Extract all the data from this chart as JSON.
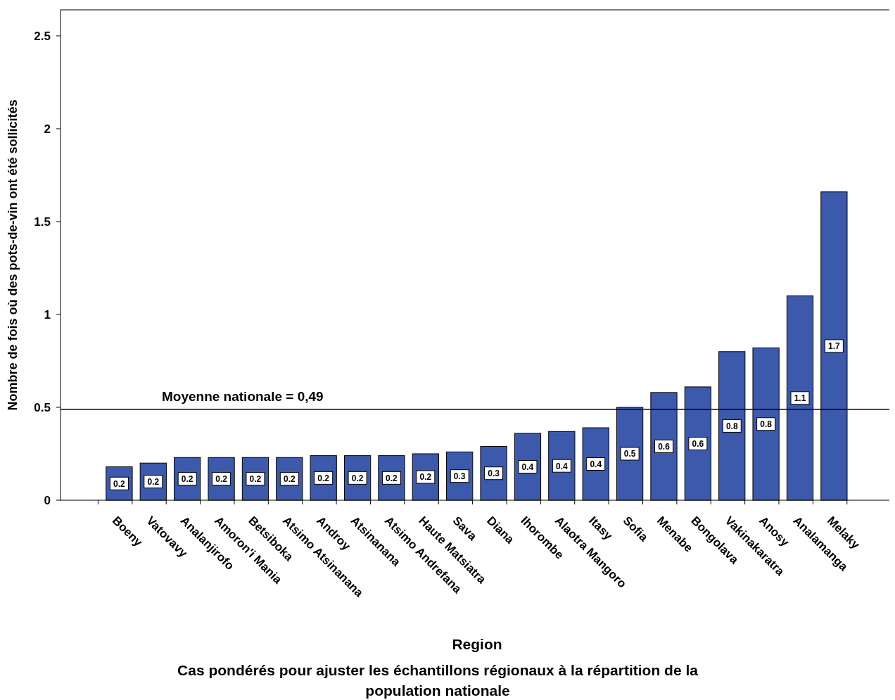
{
  "chart_data": {
    "type": "bar",
    "xlabel": "Region",
    "ylabel": "Nombre de fois où des pots-de-vin ont été sollicités",
    "annotations": [
      "Cas pondérés pour ajuster les échantillons régionaux à la répartition de la population nationale"
    ],
    "categories": [
      "Boeny",
      "Vatovavy",
      "Analanjirofo",
      "Amoron'i Mania",
      "Betsiboka",
      "Atsimo Atsinanana",
      "Androy",
      "Atsinanana",
      "Atsimo Andrefana",
      "Haute Matsiatra",
      "Sava",
      "Diana",
      "Ihorombe",
      "Alaotra Mangoro",
      "Itasy",
      "Sofia",
      "Menabe",
      "Bongolava",
      "Vakinakaratra",
      "Anosy",
      "Analamanga",
      "Melaky"
    ],
    "values": [
      0.18,
      0.2,
      0.23,
      0.23,
      0.23,
      0.23,
      0.24,
      0.24,
      0.24,
      0.25,
      0.26,
      0.29,
      0.36,
      0.37,
      0.39,
      0.5,
      0.58,
      0.61,
      0.8,
      0.82,
      1.1,
      1.66
    ],
    "value_labels": [
      "0.2",
      "0.2",
      "0.2",
      "0.2",
      "0.2",
      "0.2",
      "0.2",
      "0.2",
      "0.2",
      "0.2",
      "0.3",
      "0.3",
      "0.4",
      "0.4",
      "0.4",
      "0.5",
      "0.6",
      "0.6",
      "0.8",
      "0.8",
      "1.1",
      "1.7"
    ],
    "color": "#3d59ab",
    "ylim": [
      0,
      2.64
    ],
    "yticks": [
      0,
      0.5,
      1,
      1.5,
      2,
      2.5
    ],
    "ref_lines": [
      {
        "axis": "y",
        "value": 0.49,
        "label": "Moyenne nationale = 0,49",
        "color": "#000000"
      }
    ]
  }
}
